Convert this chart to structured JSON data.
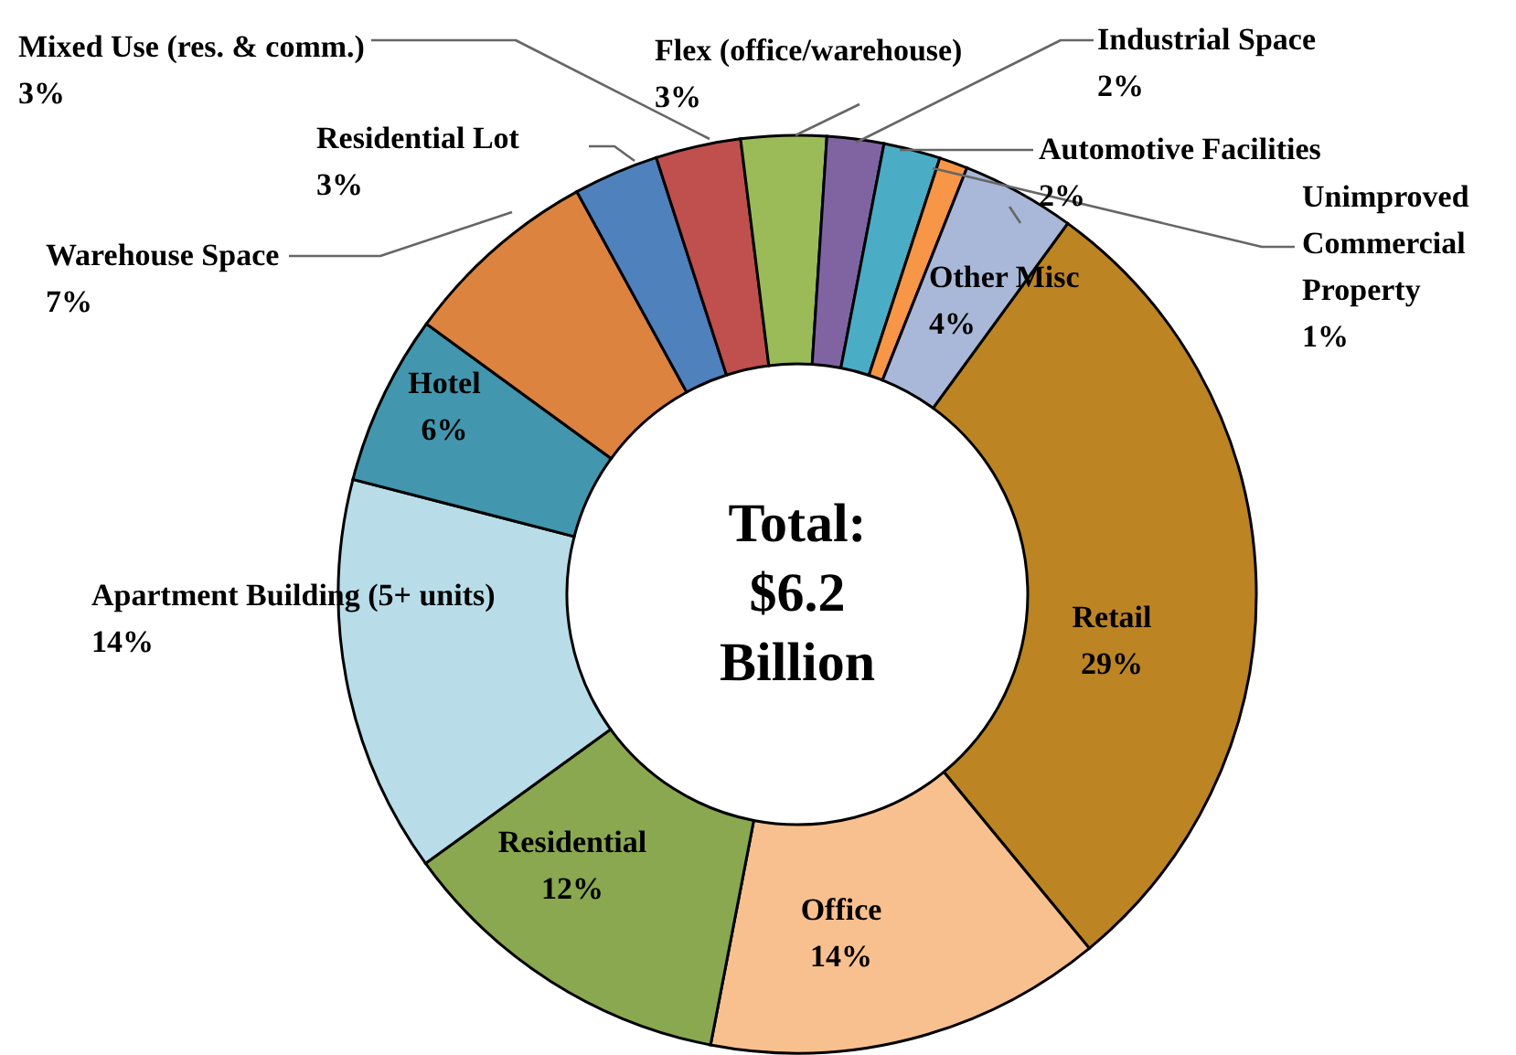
{
  "chart_data": {
    "type": "donut",
    "categories": [
      "Retail",
      "Office",
      "Residential",
      "Apartment Building (5+ units)",
      "Hotel",
      "Warehouse Space",
      "Residential Lot",
      "Mixed Use (res. & comm.)",
      "Flex (office/warehouse)",
      "Industrial Space",
      "Automotive Facilities",
      "Unimproved Commercial Property",
      "Other Misc"
    ],
    "values": [
      29,
      14,
      12,
      14,
      6,
      7,
      3,
      3,
      3,
      2,
      2,
      1,
      4
    ],
    "value_labels": [
      "29%",
      "14%",
      "12%",
      "14%",
      "6%",
      "7%",
      "3%",
      "3%",
      "3%",
      "2%",
      "2%",
      "1%",
      "4%"
    ],
    "colors": [
      "#bc8423",
      "#f9c08f",
      "#8aa84f",
      "#b8dde8",
      "#4297ae",
      "#dc843f",
      "#4f81bd",
      "#c0504d",
      "#9bbb59",
      "#8064a2",
      "#4bacc6",
      "#f79646",
      "#a9b8d8"
    ],
    "annotations": [
      "Total: $6.2 Billion"
    ]
  }
}
